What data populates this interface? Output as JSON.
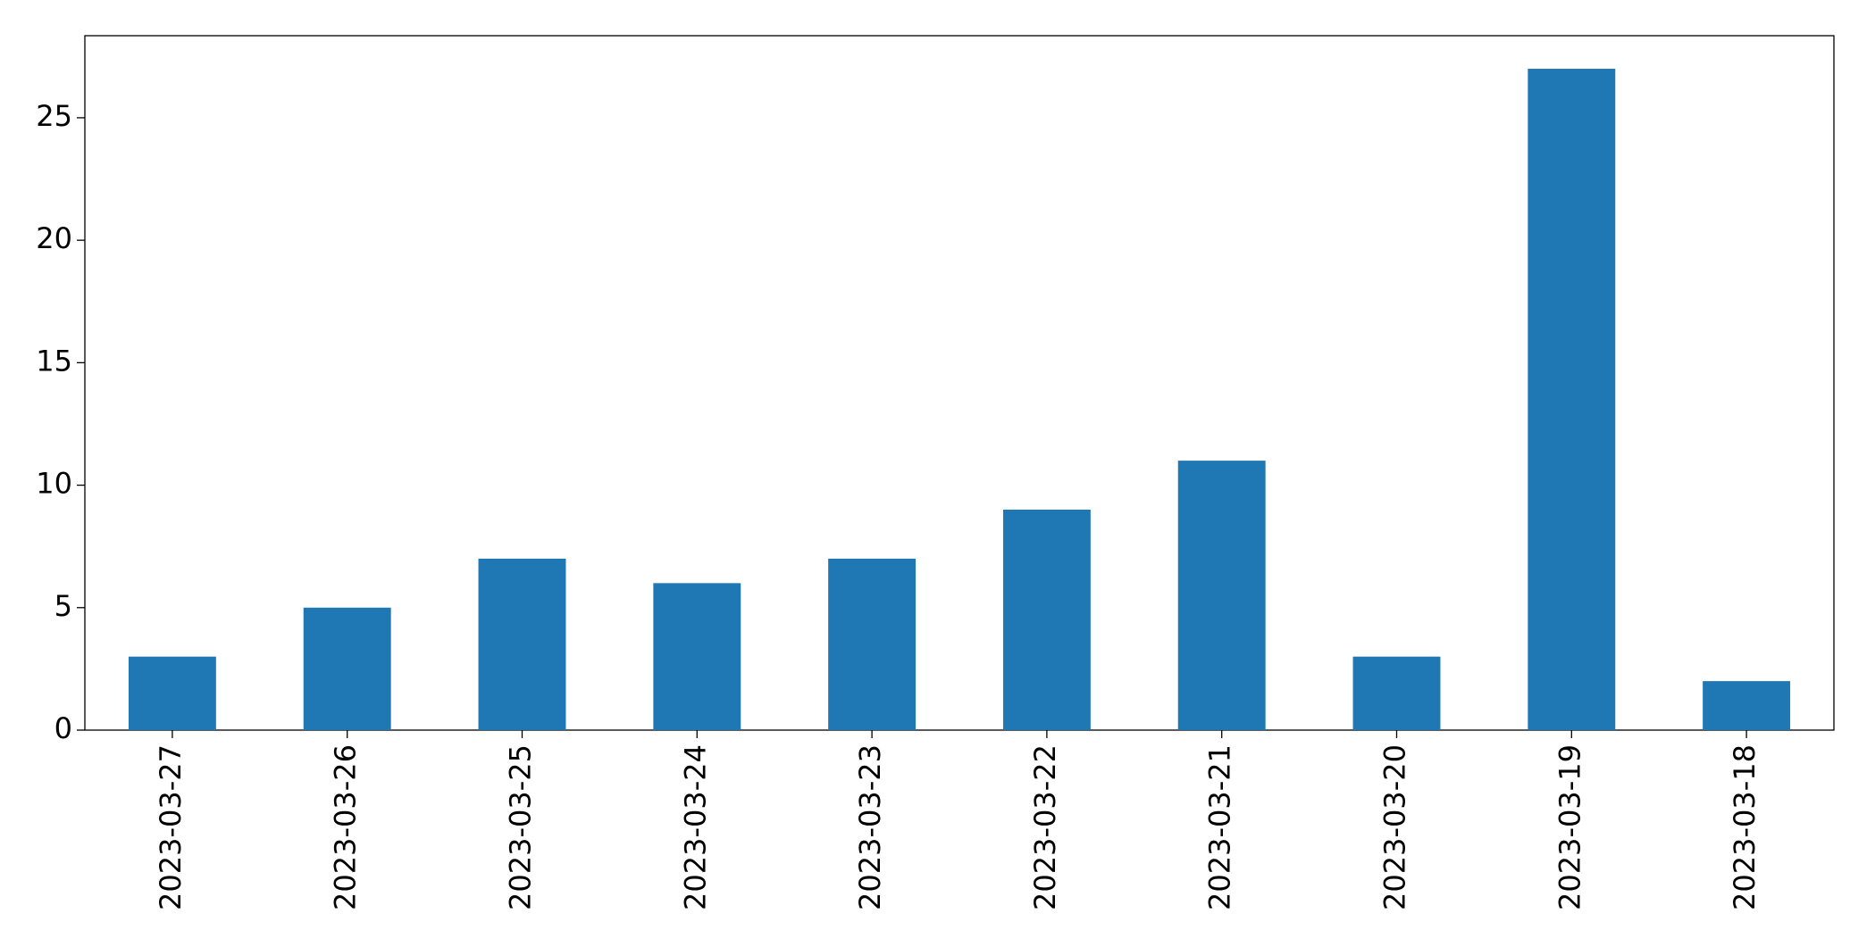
{
  "chart_data": {
    "type": "bar",
    "categories": [
      "2023-03-27",
      "2023-03-26",
      "2023-03-25",
      "2023-03-24",
      "2023-03-23",
      "2023-03-22",
      "2023-03-21",
      "2023-03-20",
      "2023-03-19",
      "2023-03-18"
    ],
    "values": [
      3,
      5,
      7,
      6,
      7,
      9,
      11,
      3,
      27,
      2
    ],
    "color": "#1f77b4",
    "ylim": [
      0,
      28.35
    ],
    "yticks": [
      0,
      5,
      10,
      15,
      20,
      25
    ],
    "grid": false
  }
}
